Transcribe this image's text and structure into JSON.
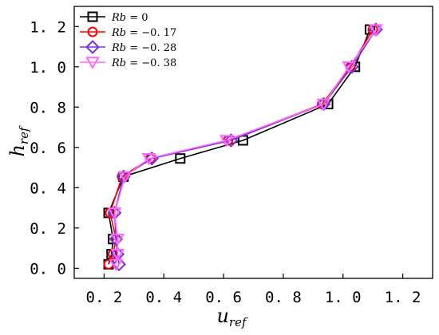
{
  "chart_data": {
    "type": "line",
    "xlabel": {
      "main": "u",
      "sub": "ref"
    },
    "ylabel": {
      "main": "h",
      "sub": "ref"
    },
    "xlim": [
      0.1,
      1.3
    ],
    "ylim": [
      -0.05,
      1.3
    ],
    "xticks": [
      0.2,
      0.4,
      0.6,
      0.8,
      1.0,
      1.2
    ],
    "yticks": [
      0.0,
      0.2,
      0.4,
      0.6,
      0.8,
      1.0,
      1.2
    ],
    "xtick_labels": [
      "0. 2",
      "0. 4",
      "0. 6",
      "0. 8",
      "1. 0",
      "1. 2"
    ],
    "ytick_labels": [
      "0. 0",
      "0. 2",
      "0. 4",
      "0. 6",
      "0. 8",
      "1. 0",
      "1. 2"
    ],
    "grid": false,
    "legend_position": "top-left",
    "series": [
      {
        "name": "Rb = 0",
        "name_var": "Rb",
        "name_rest": " = 0",
        "color": "#000000",
        "marker": "square",
        "x": [
          0.215,
          0.225,
          0.23,
          0.215,
          0.265,
          0.455,
          0.665,
          0.95,
          1.04,
          1.09
        ],
        "y": [
          0.02,
          0.07,
          0.145,
          0.275,
          0.455,
          0.545,
          0.635,
          0.815,
          1.0,
          1.185
        ]
      },
      {
        "name": "Rb = −0.17",
        "name_var": "Rb",
        "name_rest": " = −0. 17",
        "color": "#ff0000",
        "marker": "circle",
        "x": [
          0.215,
          0.23,
          0.24,
          0.22,
          0.26,
          0.355,
          0.615,
          0.93,
          1.025,
          1.1
        ],
        "y": [
          0.02,
          0.07,
          0.145,
          0.275,
          0.455,
          0.545,
          0.635,
          0.815,
          1.0,
          1.185
        ]
      },
      {
        "name": "Rb = −0.28",
        "name_var": "Rb",
        "name_rest": " = −0. 28",
        "color": "#7b2ed9",
        "marker": "diamond",
        "x": [
          0.25,
          0.245,
          0.24,
          0.235,
          0.265,
          0.36,
          0.625,
          0.935,
          1.03,
          1.11
        ],
        "y": [
          0.02,
          0.07,
          0.145,
          0.275,
          0.455,
          0.545,
          0.635,
          0.815,
          1.0,
          1.185
        ]
      },
      {
        "name": "Rb = −0.38",
        "name_var": "Rb",
        "name_rest": " = −0. 38",
        "color": "#ff66ff",
        "marker": "triangle-down",
        "x": [
          0.24,
          0.245,
          0.245,
          0.235,
          0.27,
          0.35,
          0.61,
          0.935,
          1.02,
          1.11
        ],
        "y": [
          0.02,
          0.07,
          0.145,
          0.275,
          0.455,
          0.545,
          0.635,
          0.815,
          1.0,
          1.185
        ]
      }
    ]
  }
}
